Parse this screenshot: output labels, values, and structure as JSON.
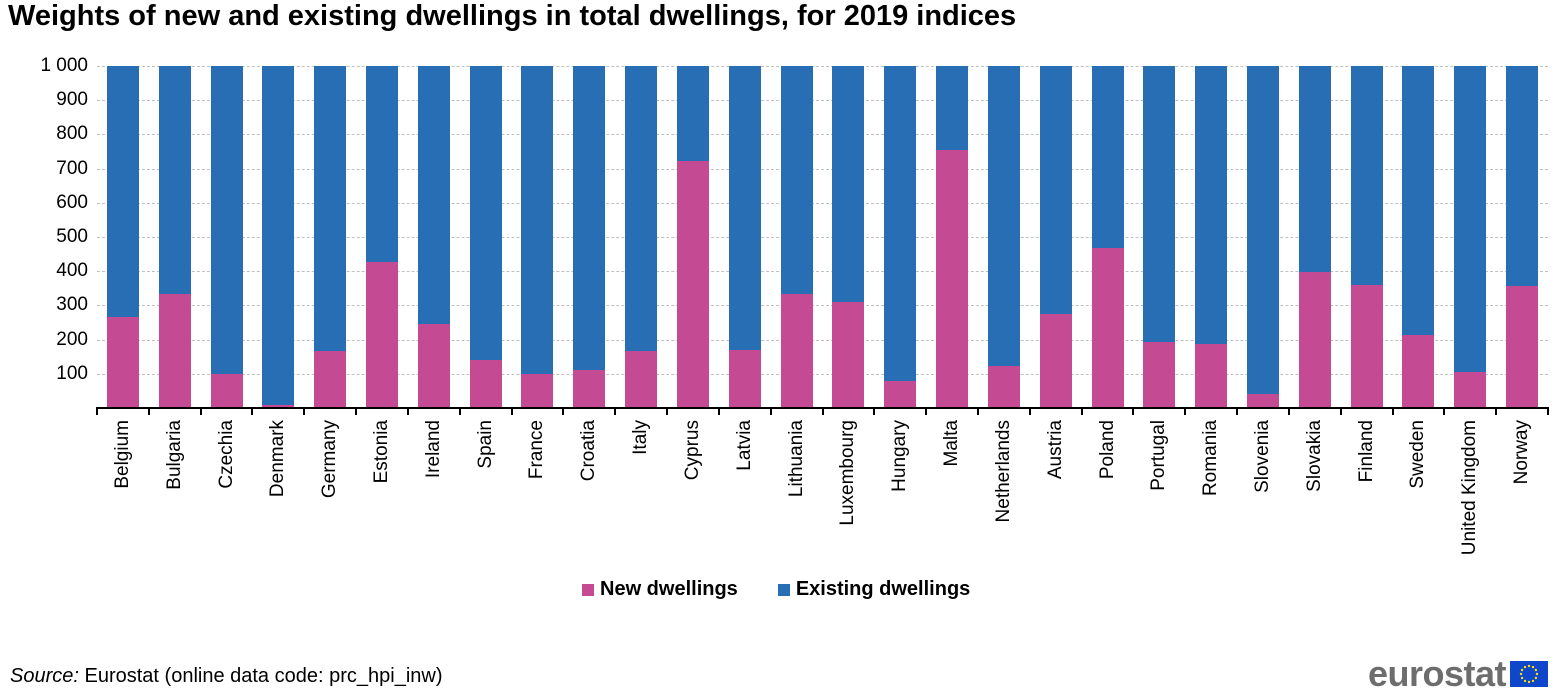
{
  "title": "Weights of new and existing dwellings in total dwellings, for 2019 indices",
  "legend": {
    "new": "New dwellings",
    "existing": "Existing dwellings"
  },
  "colors": {
    "new": "#c44b93",
    "existing": "#286eb4"
  },
  "source": {
    "prefix": "Source:",
    "text": " Eurostat (online data code: prc_hpi_inw)"
  },
  "logo": {
    "text": "eurostat"
  },
  "yticks": [
    "1 000",
    "900",
    "800",
    "700",
    "600",
    "500",
    "400",
    "300",
    "200",
    "100"
  ],
  "chart_data": {
    "type": "bar",
    "stacked": true,
    "title": "Weights of new and existing dwellings in total dwellings, for 2019 indices",
    "xlabel": "",
    "ylabel": "",
    "ylim": [
      0,
      1000
    ],
    "grid": true,
    "legend_position": "bottom",
    "categories": [
      "Belgium",
      "Bulgaria",
      "Czechia",
      "Denmark",
      "Germany",
      "Estonia",
      "Ireland",
      "Spain",
      "France",
      "Croatia",
      "Italy",
      "Cyprus",
      "Latvia",
      "Lithuania",
      "Luxembourg",
      "Hungary",
      "Malta",
      "Netherlands",
      "Austria",
      "Poland",
      "Portugal",
      "Romania",
      "Slovenia",
      "Slovakia",
      "Finland",
      "Sweden",
      "United Kingdom",
      "Norway"
    ],
    "series": [
      {
        "name": "New dwellings",
        "values": [
          267,
          334,
          100,
          8,
          167,
          426,
          246,
          140,
          99,
          111,
          166,
          722,
          169,
          333,
          310,
          80,
          754,
          122,
          275,
          469,
          192,
          186,
          42,
          398,
          360,
          213,
          104,
          357
        ]
      },
      {
        "name": "Existing dwellings",
        "values": [
          733,
          666,
          900,
          992,
          833,
          574,
          754,
          860,
          901,
          889,
          834,
          278,
          831,
          667,
          690,
          920,
          246,
          878,
          725,
          531,
          808,
          814,
          958,
          602,
          640,
          787,
          896,
          643
        ]
      }
    ]
  }
}
